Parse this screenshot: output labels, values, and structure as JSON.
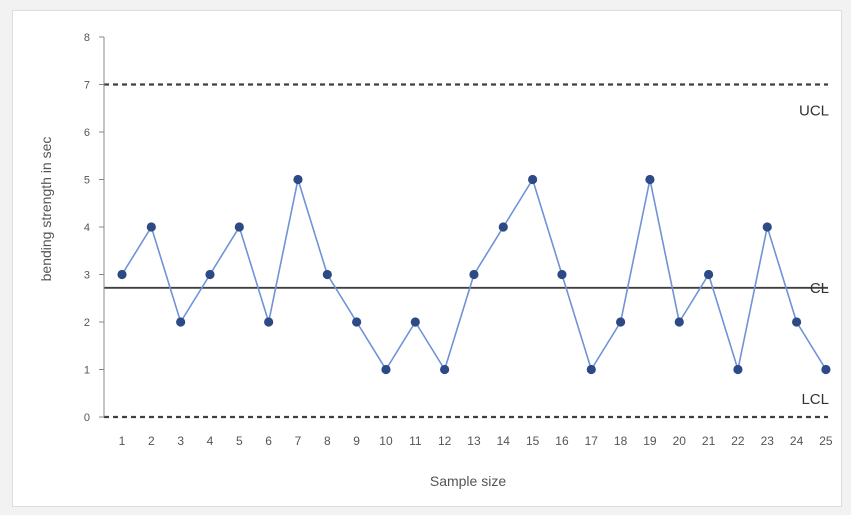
{
  "chart_data": {
    "type": "line",
    "xlabel": "Sample size",
    "ylabel": "bending strength in sec",
    "categories": [
      "1",
      "2",
      "3",
      "4",
      "5",
      "6",
      "7",
      "8",
      "9",
      "10",
      "11",
      "12",
      "13",
      "14",
      "15",
      "16",
      "17",
      "18",
      "19",
      "20",
      "21",
      "22",
      "23",
      "24",
      "25"
    ],
    "series": [
      {
        "values": [
          3,
          4,
          2,
          3,
          4,
          2,
          5,
          3,
          2,
          1,
          2,
          1,
          3,
          4,
          5,
          3,
          1,
          2,
          5,
          2,
          3,
          1,
          4,
          2,
          1
        ]
      }
    ],
    "ylim": [
      0,
      8
    ],
    "yticks": [
      "0",
      "1",
      "2",
      "3",
      "4",
      "5",
      "6",
      "7",
      "8"
    ],
    "grid": false,
    "control_lines": [
      {
        "label": "UCL",
        "value": 7,
        "style": "dashed"
      },
      {
        "label": "CL",
        "value": 2.72,
        "style": "solid"
      },
      {
        "label": "LCL",
        "value": 0,
        "style": "dashed"
      }
    ],
    "colors": {
      "line": "#6f93d6",
      "marker": "#2e4a86",
      "control": "#404040",
      "axis": "#888888"
    }
  }
}
